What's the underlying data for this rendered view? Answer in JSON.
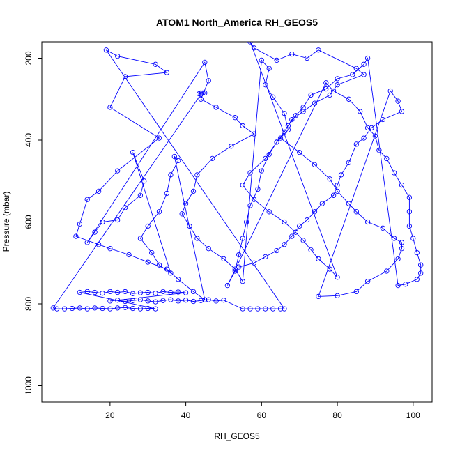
{
  "chart_data": {
    "type": "line",
    "title": "ATOM1 North_America RH_GEOS5",
    "xlabel": "RH_GEOS5",
    "ylabel": "Pressure (mbar)",
    "xlim": [
      2,
      105
    ],
    "ylim": [
      1040,
      160
    ],
    "y_reversed": true,
    "x_ticks": [
      20,
      40,
      60,
      80,
      100
    ],
    "y_ticks": [
      200,
      400,
      600,
      800,
      1000
    ],
    "grid": false,
    "line_color": "#0000ff",
    "marker": "open-circle",
    "points": [
      [
        44,
        285
      ],
      [
        44.5,
        285
      ],
      [
        45,
        285
      ],
      [
        43.5,
        287
      ],
      [
        44,
        288
      ],
      [
        5,
        810
      ],
      [
        6,
        812
      ],
      [
        8,
        812
      ],
      [
        10,
        811
      ],
      [
        12,
        810
      ],
      [
        14,
        812
      ],
      [
        16,
        810
      ],
      [
        18,
        811
      ],
      [
        20,
        812
      ],
      [
        22,
        810
      ],
      [
        24,
        809
      ],
      [
        26,
        811
      ],
      [
        28,
        812
      ],
      [
        30,
        811
      ],
      [
        32,
        812
      ],
      [
        12,
        772
      ],
      [
        14,
        770
      ],
      [
        16,
        772
      ],
      [
        18,
        774
      ],
      [
        20,
        770
      ],
      [
        22,
        772
      ],
      [
        24,
        770
      ],
      [
        26,
        775
      ],
      [
        28,
        773
      ],
      [
        30,
        772
      ],
      [
        32,
        774
      ],
      [
        34,
        770
      ],
      [
        36,
        772
      ],
      [
        38,
        771
      ],
      [
        40,
        773
      ],
      [
        20,
        793
      ],
      [
        22,
        791
      ],
      [
        24,
        794
      ],
      [
        26,
        792
      ],
      [
        28,
        790
      ],
      [
        30,
        793
      ],
      [
        32,
        795
      ],
      [
        34,
        792
      ],
      [
        36,
        790
      ],
      [
        38,
        793
      ],
      [
        40,
        791
      ],
      [
        42,
        794
      ],
      [
        44,
        792
      ],
      [
        46,
        790
      ],
      [
        48,
        793
      ],
      [
        50,
        791
      ],
      [
        55,
        812
      ],
      [
        57,
        812
      ],
      [
        59,
        812
      ],
      [
        61,
        812
      ],
      [
        63,
        812
      ],
      [
        65,
        812
      ],
      [
        66,
        812
      ],
      [
        19,
        180
      ],
      [
        22,
        195
      ],
      [
        32,
        215
      ],
      [
        35,
        235
      ],
      [
        24,
        245
      ],
      [
        20,
        320
      ],
      [
        33,
        395
      ],
      [
        22,
        475
      ],
      [
        17,
        525
      ],
      [
        14,
        545
      ],
      [
        12,
        605
      ],
      [
        11,
        635
      ],
      [
        17,
        655
      ],
      [
        20,
        665
      ],
      [
        25,
        680
      ],
      [
        30,
        698
      ],
      [
        35,
        715
      ],
      [
        38,
        740
      ],
      [
        42,
        770
      ],
      [
        45,
        790
      ],
      [
        37,
        440
      ],
      [
        38,
        450
      ],
      [
        36,
        485
      ],
      [
        35,
        530
      ],
      [
        33,
        575
      ],
      [
        30,
        610
      ],
      [
        28,
        640
      ],
      [
        31,
        675
      ],
      [
        33,
        705
      ],
      [
        36,
        725
      ],
      [
        26,
        430
      ],
      [
        29,
        500
      ],
      [
        28,
        535
      ],
      [
        24,
        565
      ],
      [
        22,
        595
      ],
      [
        18,
        600
      ],
      [
        16,
        625
      ],
      [
        14,
        650
      ],
      [
        45,
        210
      ],
      [
        46,
        255
      ],
      [
        44,
        300
      ],
      [
        48,
        320
      ],
      [
        53,
        345
      ],
      [
        55,
        365
      ],
      [
        58,
        385
      ],
      [
        52,
        415
      ],
      [
        47,
        445
      ],
      [
        43,
        485
      ],
      [
        42,
        525
      ],
      [
        40,
        555
      ],
      [
        39,
        580
      ],
      [
        41,
        610
      ],
      [
        43,
        640
      ],
      [
        46,
        665
      ],
      [
        50,
        690
      ],
      [
        53,
        715
      ],
      [
        55,
        745
      ],
      [
        60,
        205
      ],
      [
        62,
        225
      ],
      [
        61,
        265
      ],
      [
        63,
        295
      ],
      [
        66,
        335
      ],
      [
        67,
        375
      ],
      [
        64,
        405
      ],
      [
        61,
        445
      ],
      [
        57,
        480
      ],
      [
        55,
        510
      ],
      [
        58,
        545
      ],
      [
        62,
        575
      ],
      [
        66,
        600
      ],
      [
        69,
        625
      ],
      [
        71,
        645
      ],
      [
        73,
        668
      ],
      [
        75,
        690
      ],
      [
        78,
        715
      ],
      [
        80,
        735
      ],
      [
        57,
        160
      ],
      [
        58,
        175
      ],
      [
        64,
        205
      ],
      [
        68,
        190
      ],
      [
        72,
        200
      ],
      [
        75,
        180
      ],
      [
        85,
        225
      ],
      [
        87,
        240
      ],
      [
        80,
        265
      ],
      [
        78,
        290
      ],
      [
        74,
        310
      ],
      [
        71,
        330
      ],
      [
        68,
        350
      ],
      [
        66,
        380
      ],
      [
        64,
        405
      ],
      [
        62,
        435
      ],
      [
        60,
        475
      ],
      [
        59,
        520
      ],
      [
        57,
        560
      ],
      [
        56,
        600
      ],
      [
        55,
        640
      ],
      [
        54,
        680
      ],
      [
        53,
        720
      ],
      [
        51,
        755
      ],
      [
        77,
        260
      ],
      [
        79,
        280
      ],
      [
        83,
        300
      ],
      [
        86,
        330
      ],
      [
        88,
        370
      ],
      [
        90,
        390
      ],
      [
        91,
        425
      ],
      [
        93,
        445
      ],
      [
        95,
        480
      ],
      [
        97,
        510
      ],
      [
        99,
        540
      ],
      [
        99,
        575
      ],
      [
        99,
        610
      ],
      [
        100,
        640
      ],
      [
        101,
        675
      ],
      [
        102,
        705
      ],
      [
        102,
        725
      ],
      [
        101,
        740
      ],
      [
        98,
        752
      ],
      [
        96,
        755
      ],
      [
        88,
        200
      ],
      [
        87,
        215
      ],
      [
        84,
        240
      ],
      [
        80,
        250
      ],
      [
        77,
        275
      ],
      [
        73,
        290
      ],
      [
        71,
        320
      ],
      [
        69,
        340
      ],
      [
        67,
        365
      ],
      [
        65,
        395
      ],
      [
        70,
        430
      ],
      [
        74,
        460
      ],
      [
        78,
        495
      ],
      [
        80,
        525
      ],
      [
        83,
        555
      ],
      [
        85,
        575
      ],
      [
        88,
        600
      ],
      [
        92,
        615
      ],
      [
        95,
        640
      ],
      [
        97,
        650
      ],
      [
        97,
        665
      ],
      [
        96,
        690
      ],
      [
        93,
        720
      ],
      [
        88,
        745
      ],
      [
        85,
        770
      ],
      [
        80,
        780
      ],
      [
        75,
        782
      ],
      [
        94,
        280
      ],
      [
        96,
        305
      ],
      [
        97,
        330
      ],
      [
        92,
        350
      ],
      [
        89,
        370
      ],
      [
        87,
        395
      ],
      [
        85,
        410
      ],
      [
        83,
        455
      ],
      [
        81,
        485
      ],
      [
        80,
        510
      ],
      [
        79,
        535
      ],
      [
        76,
        555
      ],
      [
        74,
        575
      ],
      [
        72,
        595
      ],
      [
        70,
        610
      ],
      [
        68,
        635
      ],
      [
        66,
        655
      ],
      [
        64,
        670
      ],
      [
        61,
        685
      ],
      [
        58,
        700
      ],
      [
        54,
        710
      ]
    ]
  }
}
